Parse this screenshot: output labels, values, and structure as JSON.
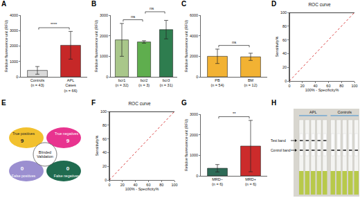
{
  "chart_data": [
    {
      "panel": "A",
      "type": "bar",
      "ylabel": "Relative fluorescence unit (RFU)",
      "categories": [
        "Controls\n(n = 43)",
        "APL\nCases\n(n = 66)"
      ],
      "values": [
        420,
        2050
      ],
      "error": [
        250,
        900
      ],
      "colors": [
        "#d9d9d9",
        "#c62828"
      ],
      "ylim": [
        0,
        4000
      ],
      "yticks": [
        0,
        1000,
        2000,
        3000,
        4000
      ],
      "comparisons": [
        {
          "pair": [
            0,
            1
          ],
          "label": "****"
        }
      ]
    },
    {
      "panel": "B",
      "type": "bar",
      "ylabel": "Relative fluorescence unit (RFU)",
      "categories": [
        "bcr1\n(n = 32)",
        "bcr2\n(n = 3)",
        "bcr3\n(n = 31)"
      ],
      "values": [
        1800,
        1700,
        2300
      ],
      "error": [
        800,
        60,
        450
      ],
      "colors": [
        "#a9c78a",
        "#5fae4e",
        "#2e7d4f"
      ],
      "ylim": [
        0,
        3000
      ],
      "yticks": [
        0,
        1000,
        2000,
        3000
      ],
      "comparisons": [
        {
          "pair": [
            0,
            1
          ],
          "label": "ns"
        },
        {
          "pair": [
            1,
            2
          ],
          "label": "ns"
        }
      ]
    },
    {
      "panel": "C",
      "type": "bar",
      "ylabel": "Relative fluorescence unit (RFU)",
      "categories": [
        "PB\n(n = 54)",
        "BM\n(n = 12)"
      ],
      "values": [
        2000,
        1950
      ],
      "error": [
        700,
        350
      ],
      "colors": [
        "#f2b233",
        "#f2b233"
      ],
      "ylim": [
        0,
        6000
      ],
      "yticks": [
        0,
        2000,
        4000,
        6000
      ],
      "comparisons": [
        {
          "pair": [
            0,
            1
          ],
          "label": "ns"
        }
      ]
    },
    {
      "panel": "D",
      "type": "line",
      "title": "ROC curve",
      "xlabel": "100% - Specificity%",
      "ylabel": "Sensitivity%",
      "x": [
        0,
        0,
        100
      ],
      "values": [
        0,
        100,
        100
      ],
      "color": "#000000",
      "reference": {
        "x": [
          0,
          100
        ],
        "values": [
          0,
          100
        ],
        "color": "#d62728",
        "line_style": "dotted"
      },
      "xlim": [
        0,
        100
      ],
      "ylim": [
        0,
        100
      ],
      "xticks": [
        0,
        20,
        40,
        60,
        80,
        100
      ],
      "yticks": [
        0,
        20,
        40,
        60,
        80,
        100
      ]
    },
    {
      "panel": "E",
      "type": "diagram",
      "center": "Blinded Validation",
      "cells": [
        {
          "label": "True positives",
          "value": 9,
          "color": "#f2c12e"
        },
        {
          "label": "True negatives",
          "value": 9,
          "color": "#e8348f"
        },
        {
          "label": "False positives",
          "value": 0,
          "color": "#9b8fd0"
        },
        {
          "label": "False negatives",
          "value": 0,
          "color": "#1f6b4f"
        }
      ]
    },
    {
      "panel": "F",
      "type": "line",
      "title": "ROC curve",
      "xlabel": "100% - Specificity%",
      "ylabel": "Sensitivity%",
      "x": [
        0,
        0,
        100
      ],
      "values": [
        0,
        100,
        100
      ],
      "color": "#000000",
      "reference": {
        "x": [
          0,
          100
        ],
        "values": [
          0,
          100
        ],
        "color": "#d62728",
        "line_style": "dotted"
      },
      "xlim": [
        0,
        100
      ],
      "ylim": [
        0,
        100
      ],
      "xticks": [
        0,
        20,
        40,
        60,
        80,
        100
      ],
      "yticks": [
        0,
        20,
        40,
        60,
        80,
        100
      ]
    },
    {
      "panel": "G",
      "type": "bar",
      "ylabel": "Relative fluorescence unit (RFU)",
      "categories": [
        "MRD−\n(n = 6)",
        "MRD+\n(n = 6)"
      ],
      "values": [
        370,
        1450
      ],
      "error": [
        180,
        1250
      ],
      "colors": [
        "#2e6b57",
        "#cc2b2b"
      ],
      "ylim": [
        0,
        3000
      ],
      "yticks": [
        0,
        1000,
        2000,
        3000
      ],
      "comparisons": [
        {
          "pair": [
            0,
            1
          ],
          "label": "**"
        }
      ]
    },
    {
      "panel": "H",
      "type": "image",
      "groups": [
        {
          "label": "APL",
          "strips": 5,
          "test_band": true
        },
        {
          "label": "Controls",
          "strips": 5,
          "test_band": false
        }
      ],
      "bands": [
        "Test band",
        "Control band"
      ]
    }
  ]
}
